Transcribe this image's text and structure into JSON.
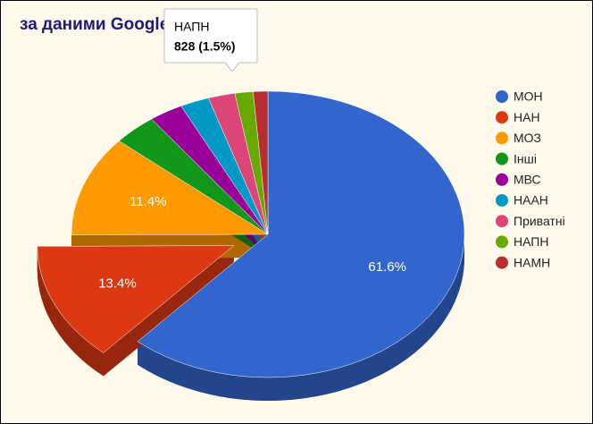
{
  "chart_data": {
    "type": "pie3d",
    "title": "за даними Google scholar",
    "categories": [
      "МОН",
      "НАН",
      "МОЗ",
      "Інші",
      "МВС",
      "НААН",
      "Приватні",
      "НАПН",
      "НАМН"
    ],
    "values": [
      61.6,
      13.4,
      11.4,
      3.6,
      2.8,
      2.4,
      2.2,
      1.5,
      1.2
    ],
    "value_labels": [
      "61.6%",
      "13.4%",
      "11.4%",
      null,
      null,
      null,
      null,
      null,
      null
    ],
    "colors": [
      "#3366cc",
      "#dc3912",
      "#ff9900",
      "#109618",
      "#990099",
      "#0099c6",
      "#dd4477",
      "#66aa00",
      "#b82e2e"
    ],
    "exploded": [
      "НАН"
    ],
    "legend": "right",
    "tooltip": {
      "label": "НАПН",
      "value_label": "828 (1.5%)"
    }
  }
}
